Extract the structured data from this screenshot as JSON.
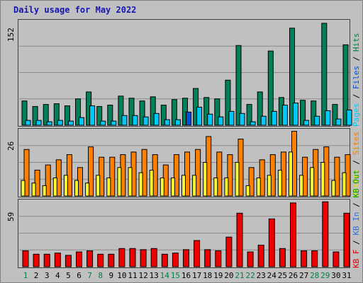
{
  "title": "Daily usage for May 2022",
  "chart_data": {
    "type": "bar",
    "categories": [
      "1",
      "2",
      "3",
      "4",
      "5",
      "6",
      "7",
      "8",
      "9",
      "10",
      "11",
      "12",
      "13",
      "14",
      "15",
      "16",
      "17",
      "18",
      "19",
      "20",
      "21",
      "22",
      "23",
      "24",
      "25",
      "26",
      "27",
      "28",
      "29",
      "30",
      "31"
    ],
    "weekend_days": [
      "1",
      "7",
      "8",
      "14",
      "15",
      "21",
      "22",
      "28",
      "29"
    ],
    "highlight_day": "16",
    "panels": [
      {
        "id": "hits-files-pages",
        "max_label": "152",
        "ylim": [
          0,
          152
        ],
        "legend": [
          {
            "text": "Pages",
            "color": "#00c8f8"
          },
          {
            "text": " / ",
            "color": "#000000"
          },
          {
            "text": "Files",
            "color": "#0050d0"
          },
          {
            "text": " / ",
            "color": "#000000"
          },
          {
            "text": "Hits",
            "color": "#008040"
          }
        ],
        "series": [
          {
            "name": "Hits",
            "color": "#00805a",
            "values": [
              35,
              27,
              30,
              31,
              28,
              38,
              48,
              27,
              29,
              42,
              39,
              35,
              41,
              29,
              37,
              39,
              53,
              40,
              38,
              65,
              115,
              30,
              48,
              107,
              40,
              140,
              36,
              35,
              147,
              30,
              116
            ]
          },
          {
            "name": "Files",
            "color": "#0050d0",
            "values": [
              7,
              7,
              5,
              7,
              6,
              11,
              28,
              6,
              6,
              14,
              14,
              12,
              17,
              8,
              8,
              19,
              26,
              16,
              12,
              20,
              17,
              5,
              13,
              20,
              29,
              32,
              7,
              13,
              21,
              9,
              22
            ]
          },
          {
            "name": "Pages",
            "color": "#00c8f8",
            "values": [
              7,
              7,
              5,
              7,
              6,
              11,
              28,
              6,
              6,
              14,
              14,
              12,
              17,
              8,
              8,
              19,
              26,
              16,
              12,
              20,
              17,
              5,
              13,
              20,
              29,
              32,
              7,
              13,
              21,
              9,
              22
            ]
          }
        ]
      },
      {
        "id": "visits-sites",
        "max_label": "26",
        "ylim": [
          0,
          26
        ],
        "legend": [
          {
            "text": "Visits",
            "color": "#e8e000"
          },
          {
            "text": " / ",
            "color": "#000000"
          },
          {
            "text": "Sites",
            "color": "#f08000"
          }
        ],
        "series": [
          {
            "name": "Sites",
            "color": "#ff8000",
            "values": [
              18,
              10,
              12,
              14,
              16,
              11,
              19,
              15,
              15,
              16,
              17,
              18,
              16,
              12,
              16,
              17,
              18,
              23,
              17,
              16,
              22,
              11,
              14,
              16,
              17,
              25,
              15,
              18,
              19,
              15,
              16
            ]
          },
          {
            "name": "Visits",
            "color": "#ffff30",
            "values": [
              6,
              5,
              4,
              7,
              8,
              6,
              5,
              8,
              7,
              11,
              11,
              9,
              10,
              7,
              7,
              8,
              8,
              13,
              7,
              7,
              13,
              4,
              7,
              8,
              10,
              17,
              8,
              11,
              13,
              6,
              9
            ]
          }
        ]
      },
      {
        "id": "kbytes",
        "max_label": "59",
        "ylim": [
          0,
          59
        ],
        "legend": [
          {
            "text": "KB F",
            "color": "#e00000"
          },
          {
            "text": " / ",
            "color": "#000000"
          },
          {
            "text": "KB In",
            "color": "#3070d8"
          },
          {
            "text": " / ",
            "color": "#000000"
          },
          {
            "text": "KB Out",
            "color": "#00a000"
          }
        ],
        "series": [
          {
            "name": "KB F",
            "color": "#ee0000",
            "values": [
              14,
              11,
              11,
              12,
              10,
              13,
              14,
              11,
              11,
              16,
              16,
              15,
              16,
              11,
              12,
              15,
              23,
              15,
              14,
              26,
              47,
              13,
              19,
              42,
              16,
              56,
              14,
              14,
              57,
              13,
              47
            ]
          }
        ]
      }
    ]
  }
}
